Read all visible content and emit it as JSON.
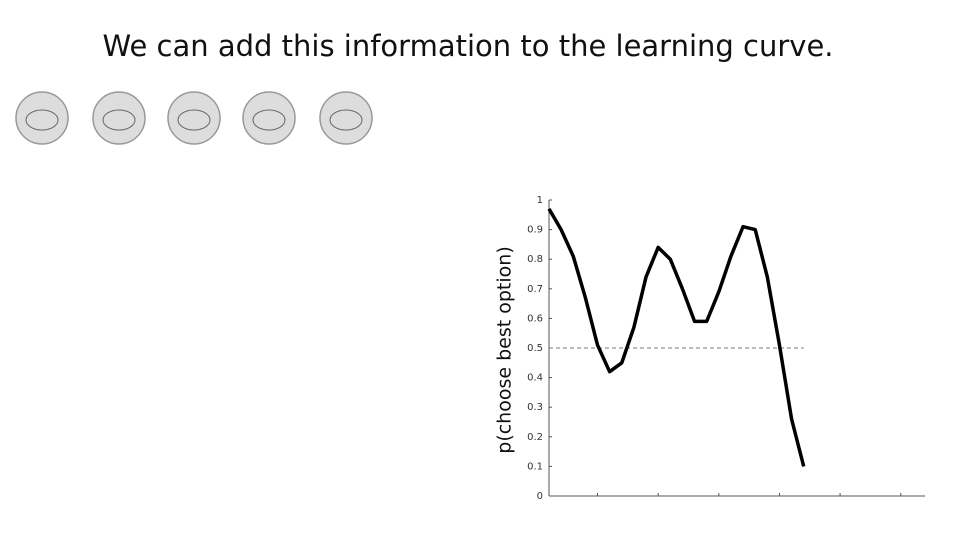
{
  "chart_data": {
    "type": "line",
    "title": "We can add this information to the learning curve.",
    "y_label": "p(choose best option)",
    "x": [
      1,
      2,
      3,
      4,
      5,
      6,
      7,
      8,
      9,
      10,
      11,
      12,
      13,
      14,
      15,
      16,
      17,
      18,
      19,
      20,
      21,
      22
    ],
    "series": [
      {
        "color": "#000000",
        "values": [
          0.97,
          0.9,
          0.81,
          0.67,
          0.51,
          0.42,
          0.45,
          0.57,
          0.74,
          0.84,
          0.8,
          0.7,
          0.59,
          0.59,
          0.69,
          0.81,
          0.91,
          0.9,
          0.74,
          0.51,
          0.26,
          0.1
        ]
      }
    ],
    "reference_line": 0.5,
    "xlim": [
      1,
      32
    ],
    "xticks": [
      5,
      10,
      15,
      20,
      25,
      30
    ],
    "ylim": [
      0,
      1
    ],
    "yticks": [
      0,
      0.1,
      0.2,
      0.3,
      0.4,
      0.5,
      0.6,
      0.7,
      0.8,
      0.9,
      1
    ]
  }
}
